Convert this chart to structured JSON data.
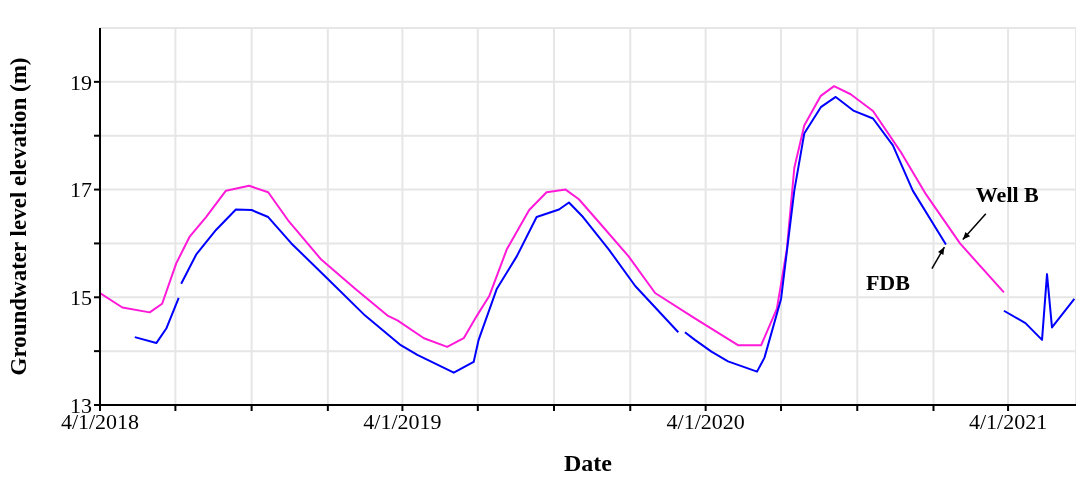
{
  "chart_data": {
    "type": "line",
    "xlabel": "Date",
    "ylabel": "Groundwater level elevation (m)",
    "xlim": [
      "2018-04-01",
      "2021-06-22"
    ],
    "xticks": [
      {
        "value": "2018-04-01",
        "label": "4/1/2018"
      },
      {
        "value": "2018-07-01",
        "label": null
      },
      {
        "value": "2018-10-01",
        "label": null
      },
      {
        "value": "2019-01-01",
        "label": null
      },
      {
        "value": "2019-04-01",
        "label": "4/1/2019"
      },
      {
        "value": "2019-07-01",
        "label": null
      },
      {
        "value": "2019-10-01",
        "label": null
      },
      {
        "value": "2020-01-01",
        "label": null
      },
      {
        "value": "2020-04-01",
        "label": "4/1/2020"
      },
      {
        "value": "2020-07-01",
        "label": null
      },
      {
        "value": "2020-10-01",
        "label": null
      },
      {
        "value": "2021-01-01",
        "label": null
      },
      {
        "value": "2021-04-01",
        "label": "4/1/2021"
      }
    ],
    "ylim": [
      13,
      20
    ],
    "yticks": [
      13,
      {
        "value": 14,
        "label": null
      },
      15,
      {
        "value": 16,
        "label": null
      },
      17,
      {
        "value": 18,
        "label": null
      },
      19
    ],
    "grid": true,
    "marker": "none",
    "line_style": "solid",
    "series": [
      {
        "color": "#ff1ad9",
        "x": [
          "2018-04-01",
          "2018-04-28",
          "2018-05-31",
          "2018-06-15",
          "2018-07-02",
          "2018-07-18",
          "2018-08-07",
          "2018-08-31",
          "2018-09-28",
          "2018-10-21",
          "2018-11-14",
          "2018-12-24",
          "2019-02-03",
          "2019-03-14",
          "2019-03-26",
          "2019-04-27",
          "2019-05-25",
          "2019-06-14",
          "2019-06-30",
          "2019-07-15",
          "2019-08-05",
          "2019-09-01",
          "2019-09-22",
          "2019-10-15",
          "2019-10-31",
          "2019-11-29",
          "2019-12-30",
          "2020-01-31",
          "2020-03-19",
          "2020-05-10",
          "2020-06-07",
          "2020-06-26",
          "2020-07-08",
          "2020-07-17",
          "2020-07-29",
          "2020-08-18",
          "2020-09-03",
          "2020-09-23",
          "2020-10-20",
          "2020-11-22",
          "2020-12-23",
          "2021-02-02",
          "2021-03-27"
        ],
        "values": [
          15.08,
          14.81,
          14.72,
          14.88,
          15.63,
          16.12,
          16.49,
          16.98,
          17.07,
          16.95,
          16.43,
          15.7,
          15.16,
          14.66,
          14.57,
          14.24,
          14.08,
          14.24,
          14.66,
          15.03,
          15.89,
          16.62,
          16.95,
          17.0,
          16.82,
          16.31,
          15.76,
          15.08,
          14.61,
          14.11,
          14.11,
          14.79,
          15.89,
          17.4,
          18.19,
          18.74,
          18.92,
          18.77,
          18.46,
          17.71,
          16.91,
          16.0,
          15.09
        ]
      },
      {
        "color": "#0000ff",
        "x": [
          "2018-05-13",
          "2018-06-08",
          "2018-06-20",
          "2018-07-05",
          "2018-07-07",
          "2018-07-08",
          "2018-07-26",
          "2018-08-19",
          "2018-09-12",
          "2018-10-01",
          "2018-10-21",
          "2018-11-18",
          "2019-01-01",
          "2019-02-15",
          "2019-03-30",
          "2019-04-19",
          "2019-06-02",
          "2019-06-26",
          "2019-07-02",
          "2019-07-24",
          "2019-08-17",
          "2019-09-10",
          "2019-10-07",
          "2019-10-19",
          "2019-11-05",
          "2019-12-06",
          "2020-01-07",
          "2020-02-28",
          "2020-03-02",
          "2020-03-07",
          "2020-03-19",
          "2020-04-08",
          "2020-04-28",
          "2020-06-02",
          "2020-06-11",
          "2020-07-01",
          "2020-07-17",
          "2020-07-29",
          "2020-08-18",
          "2020-09-05",
          "2020-09-27",
          "2020-10-20",
          "2020-11-13",
          "2020-12-07",
          "2021-01-16",
          "2021-02-20",
          "2021-03-27",
          "2021-04-22",
          "2021-05-12",
          "2021-05-18",
          "2021-05-24",
          "2021-06-20"
        ],
        "values": [
          14.26,
          14.15,
          14.42,
          14.99,
          null,
          15.25,
          15.79,
          16.25,
          16.63,
          16.62,
          16.49,
          16.0,
          15.34,
          14.66,
          14.11,
          13.93,
          13.6,
          13.8,
          14.21,
          15.16,
          15.76,
          16.49,
          16.63,
          16.76,
          16.49,
          15.89,
          15.21,
          14.35,
          null,
          14.35,
          14.21,
          13.99,
          13.81,
          13.62,
          13.88,
          14.97,
          16.98,
          18.04,
          18.53,
          18.72,
          18.46,
          18.32,
          17.82,
          16.98,
          15.98,
          null,
          14.75,
          14.52,
          14.21,
          15.43,
          14.44,
          14.97
        ]
      }
    ],
    "annotations": [
      {
        "text": "Well B",
        "x": "2021-02-03",
        "y": 16.03
      },
      {
        "text": "FDB",
        "x": "2021-01-16",
        "y": 15.98
      }
    ]
  }
}
